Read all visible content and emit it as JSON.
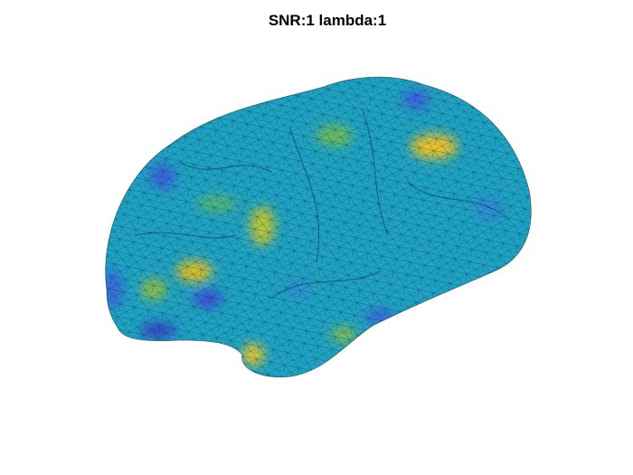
{
  "title": "SNR:1 lambda:1"
}
